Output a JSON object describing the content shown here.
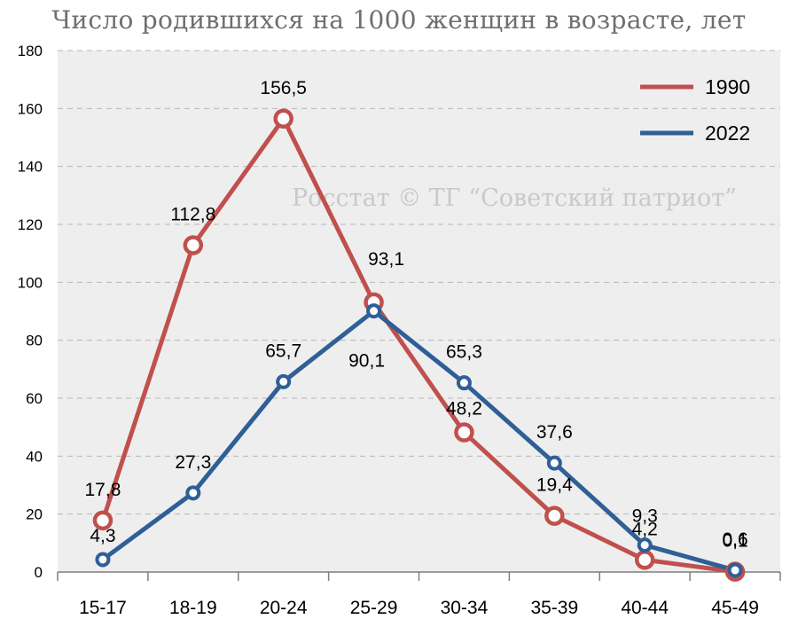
{
  "title": "Число родившихся на 1000 женщин в возрасте, лет",
  "watermark": "Росстат © ТГ “Советский патриот”",
  "chart_data": {
    "type": "line",
    "title": "Число родившихся на 1000 женщин в возрасте, лет",
    "xlabel": "",
    "ylabel": "",
    "categories": [
      "15-17",
      "18-19",
      "20-24",
      "25-29",
      "30-34",
      "35-39",
      "40-44",
      "45-49"
    ],
    "ylim": [
      0,
      180
    ],
    "yticks": [
      0,
      20,
      40,
      60,
      80,
      100,
      120,
      140,
      160,
      180
    ],
    "grid": "horizontal dashed",
    "legend_position": "top-right",
    "series": [
      {
        "name": "1990",
        "color": "#c0504d",
        "values": [
          17.8,
          112.8,
          156.5,
          93.1,
          48.2,
          19.4,
          4.2,
          0.1
        ],
        "labels": [
          "17,8",
          "112,8",
          "156,5",
          "93,1",
          "48,2",
          "19,4",
          "4,2",
          "0,1"
        ]
      },
      {
        "name": "2022",
        "color": "#2f5f97",
        "values": [
          4.3,
          27.3,
          65.7,
          90.1,
          65.3,
          37.6,
          9.3,
          0.6
        ],
        "labels": [
          "4,3",
          "27,3",
          "65,7",
          "90,1",
          "65,3",
          "37,6",
          "9,3",
          "0,6"
        ]
      }
    ]
  }
}
